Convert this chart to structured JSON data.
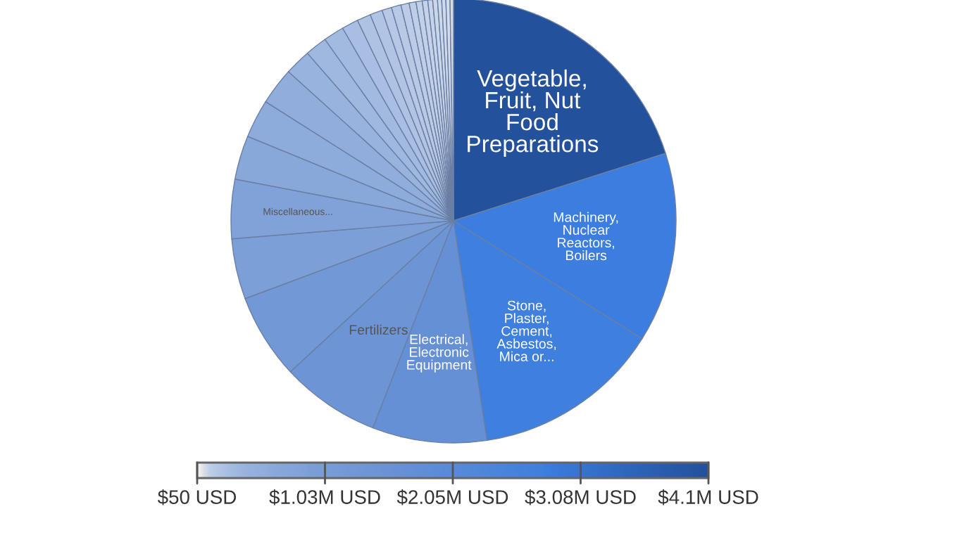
{
  "chart_data": {
    "type": "pie",
    "categories": [
      "Vegetable,\nFruit, Nut\nFood\nPreparations",
      "Machinery,\nNuclear\nReactors,\nBoilers",
      "Stone,\nPlaster,\nCement,\nAsbestos,\nMica or...",
      "Electrical,\nElectronic\nEquipment",
      "Fertilizers",
      null,
      null,
      "Miscellaneous...",
      null,
      null,
      null,
      null,
      null,
      null,
      null,
      null,
      null,
      null,
      null,
      null,
      null,
      null,
      null,
      null,
      null,
      null,
      null,
      null,
      null
    ],
    "values": [
      20.1,
      13.8,
      13.7,
      8.3,
      7.2,
      6.2,
      4.4,
      4.3,
      3.2,
      2.8,
      2.7,
      1.9,
      1.6,
      1.5,
      1.2,
      1.0,
      0.9,
      0.7,
      0.7,
      0.6,
      0.5,
      0.45,
      0.4,
      0.35,
      0.35,
      0.3,
      0.3,
      0.3,
      0.25
    ],
    "colors": [
      "#24519c",
      "#3c7de0",
      "#3f7fde",
      "#6690d6",
      "#6d94d4",
      "#7299d5",
      "#7d9fd7",
      "#80a2d8",
      "#88a8da",
      "#8dabdb",
      "#90addc",
      "#98b3de",
      "#9fb8e0",
      "#a2bae0",
      "#a8bee2",
      "#aec2e3",
      "#b1c4e4",
      "#b6c8e5",
      "#b8c9e6",
      "#bccce7",
      "#bfcee7",
      "#c2d0e8",
      "#c5d2e9",
      "#c8d4ea",
      "#cad6ea",
      "#cdd8eb",
      "#d0daeb",
      "#d3dcec",
      "#d8dce4"
    ],
    "annotations": [
      "$50 USD",
      "$1.03M USD",
      "$2.05M USD",
      "$3.08M USD",
      "$4.1M USD"
    ]
  }
}
